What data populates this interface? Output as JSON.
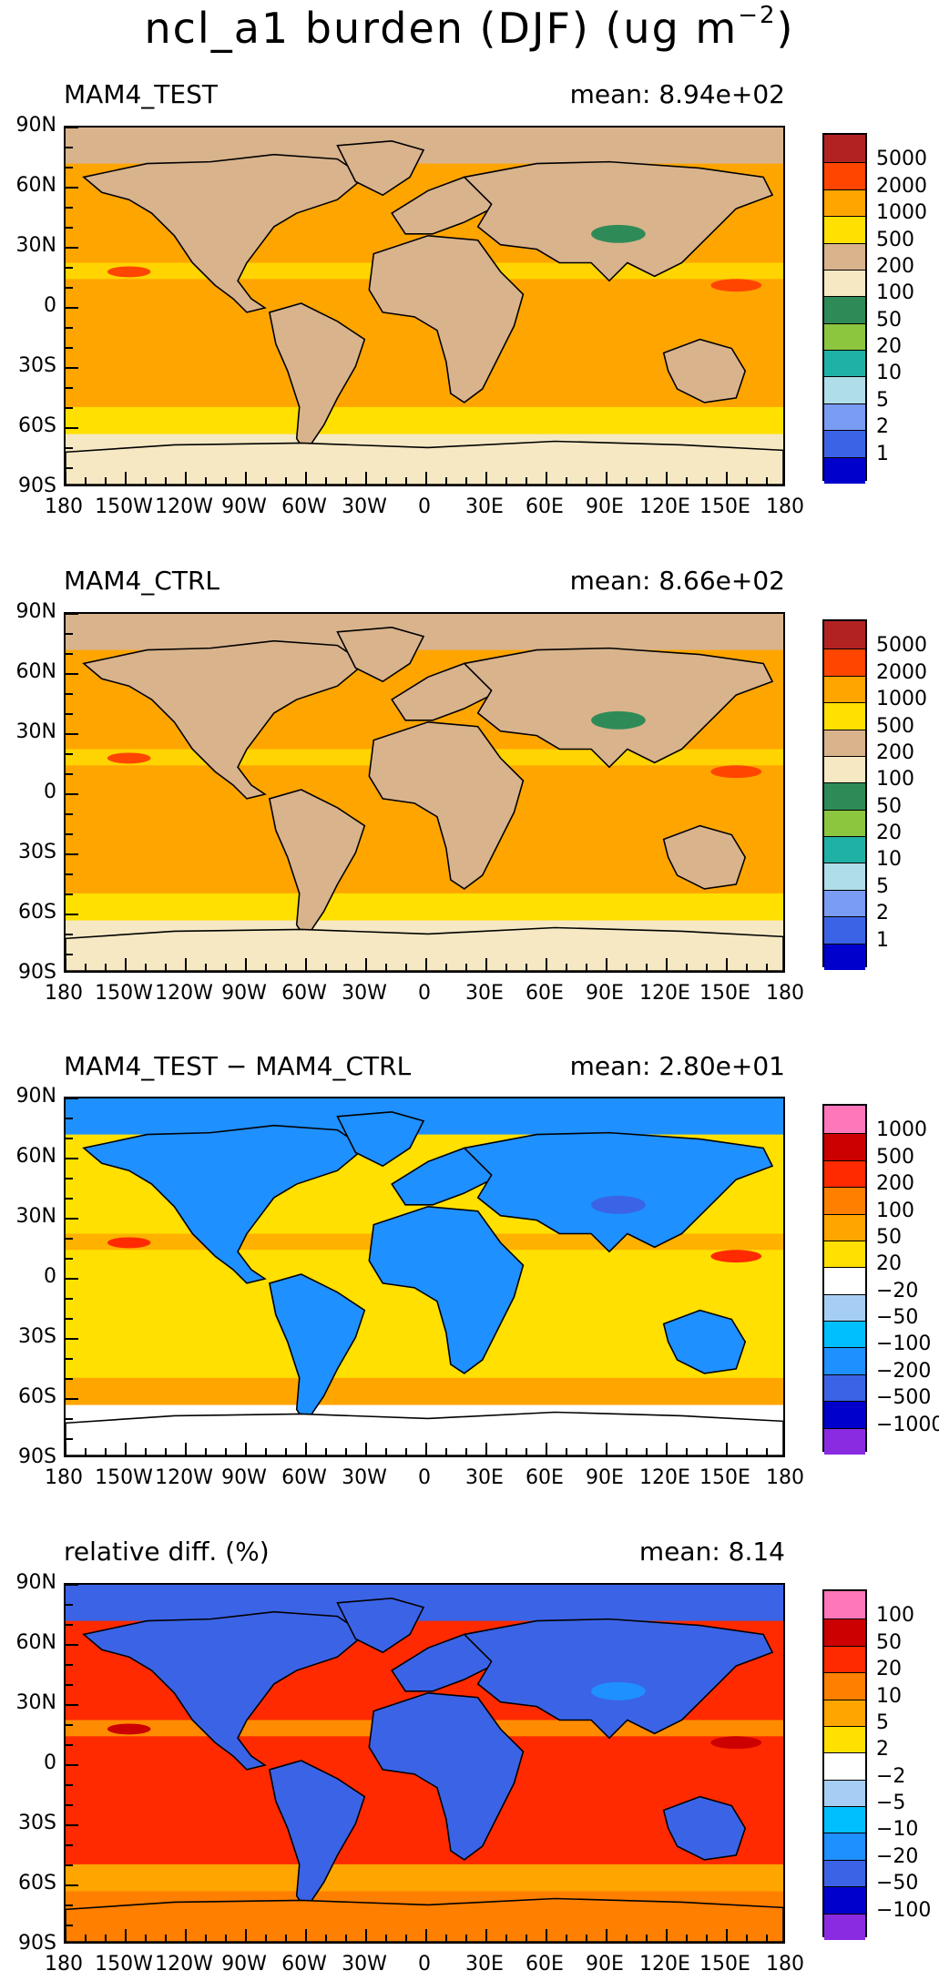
{
  "title": {
    "main": "ncl_a1 burden (DJF) (ug m",
    "exponent": "−2",
    "close": ")"
  },
  "axes": {
    "y_labels": [
      "90N",
      "60N",
      "30N",
      "0",
      "30S",
      "60S",
      "90S"
    ],
    "x_labels": [
      "180",
      "150W",
      "120W",
      "90W",
      "60W",
      "30W",
      "0",
      "30E",
      "60E",
      "90E",
      "120E",
      "150E",
      "180"
    ]
  },
  "panels": [
    {
      "id": "test",
      "title": "MAM4_TEST",
      "mean": "mean: 8.94e+02",
      "palette": [
        "#0000CD",
        "#3B63E6",
        "#7A9CF2",
        "#AFDDE8",
        "#1FB1A6",
        "#8CC63F",
        "#2E8B57",
        "#F6E8C3",
        "#D9B38C",
        "#FFE000",
        "#FFA500",
        "#FF4500",
        "#B22222"
      ],
      "labels": [
        "1",
        "2",
        "5",
        "10",
        "20",
        "50",
        "100",
        "200",
        "500",
        "1000",
        "2000",
        "5000"
      ],
      "ocean": "#FFA500",
      "land": "#D9B38C",
      "polar": "#F6E8C3",
      "band": "#FFE000",
      "hot": "#FF4500",
      "cool": "#2E8B57"
    },
    {
      "id": "ctrl",
      "title": "MAM4_CTRL",
      "mean": "mean: 8.66e+02",
      "palette": [
        "#0000CD",
        "#3B63E6",
        "#7A9CF2",
        "#AFDDE8",
        "#1FB1A6",
        "#8CC63F",
        "#2E8B57",
        "#F6E8C3",
        "#D9B38C",
        "#FFE000",
        "#FFA500",
        "#FF4500",
        "#B22222"
      ],
      "labels": [
        "1",
        "2",
        "5",
        "10",
        "20",
        "50",
        "100",
        "200",
        "500",
        "1000",
        "2000",
        "5000"
      ],
      "ocean": "#FFA500",
      "land": "#D9B38C",
      "polar": "#F6E8C3",
      "band": "#FFE000",
      "hot": "#FF4500",
      "cool": "#2E8B57"
    },
    {
      "id": "diff",
      "title": "MAM4_TEST − MAM4_CTRL",
      "mean": "mean: 2.80e+01",
      "palette": [
        "#8A2BE2",
        "#0000CD",
        "#3B63E6",
        "#1E90FF",
        "#00BFFF",
        "#A6CEF5",
        "#FFFFFF",
        "#FFE000",
        "#FFA500",
        "#FF7F00",
        "#FF2A00",
        "#CC0000",
        "#FF77BB"
      ],
      "labels": [
        "−1000",
        "−500",
        "−200",
        "−100",
        "−50",
        "−20",
        "20",
        "50",
        "100",
        "200",
        "500",
        "1000"
      ],
      "ocean": "#FFE000",
      "land": "#1E90FF",
      "polar": "#FFFFFF",
      "band": "#FFA500",
      "hot": "#FF2A00",
      "cool": "#3B63E6"
    },
    {
      "id": "rel",
      "title": "relative diff. (%)",
      "mean": "mean:  8.14",
      "palette": [
        "#8A2BE2",
        "#0000CD",
        "#3B63E6",
        "#1E90FF",
        "#00BFFF",
        "#A6CEF5",
        "#FFFFFF",
        "#FFE000",
        "#FFA500",
        "#FF7F00",
        "#FF2A00",
        "#CC0000",
        "#FF77BB"
      ],
      "labels": [
        "−100",
        "−50",
        "−20",
        "−10",
        "−5",
        "−2",
        "2",
        "5",
        "10",
        "20",
        "50",
        "100"
      ],
      "ocean": "#FF2A00",
      "land": "#3B63E6",
      "polar": "#FF7F00",
      "band": "#FFA500",
      "hot": "#CC0000",
      "cool": "#1E90FF"
    }
  ]
}
